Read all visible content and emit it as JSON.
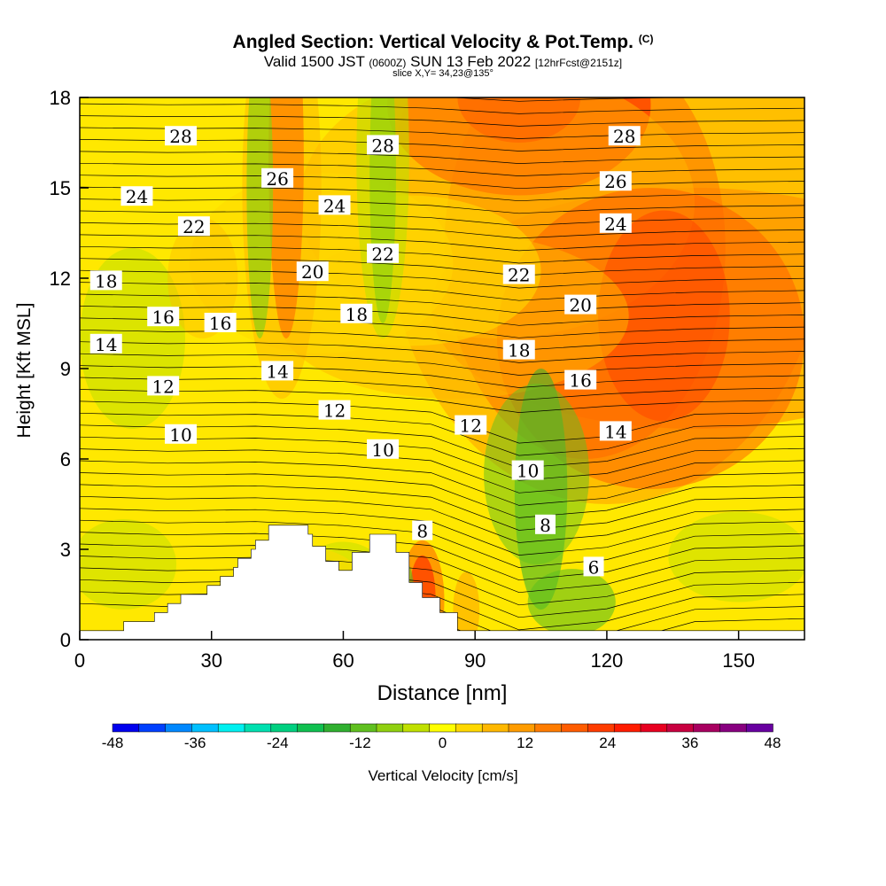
{
  "title": {
    "main": "Angled Section: Vertical Velocity & Pot.Temp.",
    "main_unit": "(C)",
    "valid_prefix": "Valid 1500 JST",
    "valid_z": "(0600Z)",
    "valid_date": "SUN 13 Feb 2022",
    "valid_fcst": "[12hrFcst@2151z]",
    "slice": "slice X,Y= 34,23@135°"
  },
  "colors": {
    "terrain": "#ffffff",
    "contour": "#000000",
    "frame": "#000000"
  },
  "chart_data": {
    "type": "heatmap",
    "xlabel": "Distance [nm]",
    "ylabel": "Height [Kft MSL]",
    "xlim": [
      0,
      165
    ],
    "ylim": [
      0,
      18
    ],
    "xticks": [
      0,
      30,
      60,
      90,
      120,
      150
    ],
    "yticks": [
      0,
      3,
      6,
      9,
      12,
      15,
      18
    ],
    "colorbar": {
      "label": "Vertical Velocity [cm/s]",
      "ticks": [
        -48,
        -36,
        -24,
        -12,
        0,
        12,
        24,
        36,
        48
      ],
      "levels": [
        -48,
        -44,
        -40,
        -36,
        -32,
        -28,
        -24,
        -20,
        -16,
        -12,
        -8,
        -4,
        0,
        4,
        8,
        12,
        16,
        20,
        24,
        28,
        32,
        36,
        40,
        44,
        48
      ],
      "colors": [
        "#0000ee",
        "#0040ff",
        "#0088ff",
        "#00c0ff",
        "#00f0f0",
        "#00e0b0",
        "#00d080",
        "#10c050",
        "#30b030",
        "#60c020",
        "#90d010",
        "#c0e000",
        "#ffff00",
        "#ffd800",
        "#ffb800",
        "#ff9c00",
        "#ff7c00",
        "#ff5c00",
        "#ff3c00",
        "#ff1c00",
        "#e80020",
        "#c80040",
        "#a80060",
        "#880080",
        "#6800a0"
      ]
    },
    "terrain_profile": [
      [
        0,
        0.3
      ],
      [
        10,
        0.3
      ],
      [
        10,
        0.6
      ],
      [
        17,
        0.6
      ],
      [
        17,
        0.9
      ],
      [
        20,
        0.9
      ],
      [
        20,
        1.2
      ],
      [
        23,
        1.2
      ],
      [
        23,
        1.5
      ],
      [
        29,
        1.5
      ],
      [
        29,
        1.8
      ],
      [
        32,
        1.8
      ],
      [
        32,
        2.1
      ],
      [
        35,
        2.1
      ],
      [
        35,
        2.4
      ],
      [
        36,
        2.4
      ],
      [
        36,
        2.7
      ],
      [
        39,
        2.7
      ],
      [
        39,
        3.0
      ],
      [
        40,
        3.0
      ],
      [
        40,
        3.3
      ],
      [
        43,
        3.3
      ],
      [
        43,
        3.8
      ],
      [
        52,
        3.8
      ],
      [
        52,
        3.5
      ],
      [
        53,
        3.5
      ],
      [
        53,
        3.1
      ],
      [
        56,
        3.1
      ],
      [
        56,
        2.6
      ],
      [
        59,
        2.6
      ],
      [
        59,
        2.3
      ],
      [
        62,
        2.3
      ],
      [
        62,
        2.9
      ],
      [
        66,
        2.9
      ],
      [
        66,
        3.5
      ],
      [
        72,
        3.5
      ],
      [
        72,
        2.9
      ],
      [
        75,
        2.9
      ],
      [
        75,
        1.9
      ],
      [
        78,
        1.9
      ],
      [
        78,
        1.4
      ],
      [
        82,
        1.4
      ],
      [
        82,
        0.9
      ],
      [
        86,
        0.9
      ],
      [
        86,
        0.3
      ],
      [
        165,
        0.3
      ]
    ],
    "theta_contours_C": [
      6,
      8,
      10,
      12,
      14,
      16,
      18,
      20,
      22,
      24,
      26,
      28
    ],
    "contour_labels": [
      {
        "text": "28",
        "x": 23,
        "y": 16.7
      },
      {
        "text": "28",
        "x": 69,
        "y": 16.4
      },
      {
        "text": "28",
        "x": 124,
        "y": 16.7
      },
      {
        "text": "26",
        "x": 45,
        "y": 15.3
      },
      {
        "text": "26",
        "x": 122,
        "y": 15.2
      },
      {
        "text": "24",
        "x": 13,
        "y": 14.7
      },
      {
        "text": "24",
        "x": 58,
        "y": 14.4
      },
      {
        "text": "24",
        "x": 122,
        "y": 13.8
      },
      {
        "text": "22",
        "x": 26,
        "y": 13.7
      },
      {
        "text": "22",
        "x": 69,
        "y": 12.8
      },
      {
        "text": "22",
        "x": 100,
        "y": 12.1
      },
      {
        "text": "20",
        "x": 53,
        "y": 12.2
      },
      {
        "text": "20",
        "x": 114,
        "y": 11.1
      },
      {
        "text": "18",
        "x": 6,
        "y": 11.9
      },
      {
        "text": "18",
        "x": 63,
        "y": 10.8
      },
      {
        "text": "18",
        "x": 100,
        "y": 9.6
      },
      {
        "text": "16",
        "x": 19,
        "y": 10.7
      },
      {
        "text": "16",
        "x": 32,
        "y": 10.5
      },
      {
        "text": "16",
        "x": 114,
        "y": 8.6
      },
      {
        "text": "14",
        "x": 6,
        "y": 9.8
      },
      {
        "text": "14",
        "x": 45,
        "y": 8.9
      },
      {
        "text": "14",
        "x": 122,
        "y": 6.9
      },
      {
        "text": "12",
        "x": 19,
        "y": 8.4
      },
      {
        "text": "12",
        "x": 58,
        "y": 7.6
      },
      {
        "text": "12",
        "x": 89,
        "y": 7.1
      },
      {
        "text": "10",
        "x": 23,
        "y": 6.8
      },
      {
        "text": "10",
        "x": 69,
        "y": 6.3
      },
      {
        "text": "10",
        "x": 102,
        "y": 5.6
      },
      {
        "text": "8",
        "x": 78,
        "y": 3.6
      },
      {
        "text": "8",
        "x": 106,
        "y": 3.8
      },
      {
        "text": "6",
        "x": 117,
        "y": 2.4
      }
    ]
  }
}
